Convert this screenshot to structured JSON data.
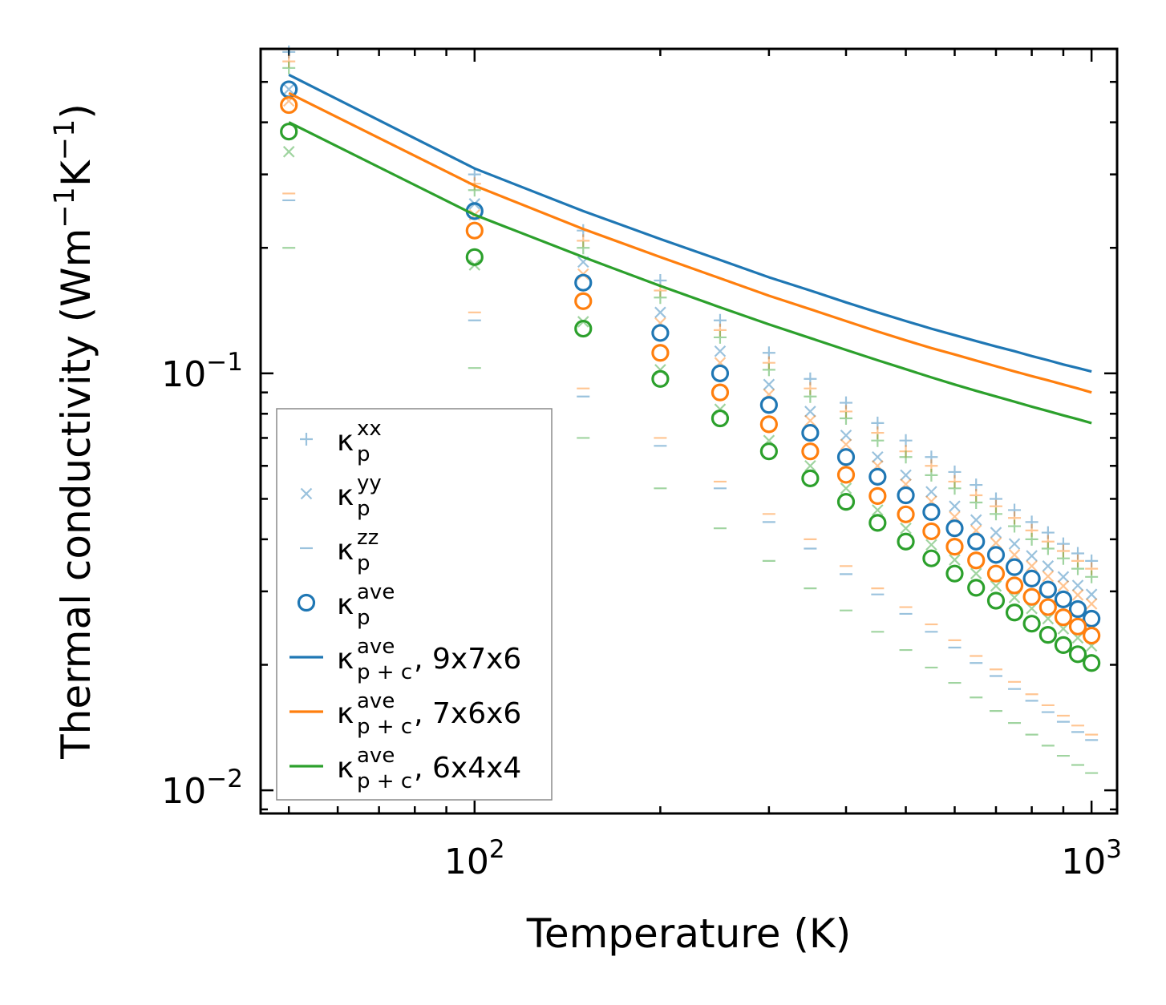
{
  "chart_data": {
    "type": "scatter",
    "x_scale": "log",
    "y_scale": "log",
    "xlim": [
      45,
      1100
    ],
    "ylim": [
      0.0088,
      0.6
    ],
    "xlabel": "Temperature (K)",
    "ylabel": {
      "text": "Thermal conductivity (Wm",
      "sup1": "−1",
      "mid": "K",
      "sup2": "−1",
      "end": ")"
    },
    "x_major_ticks": [
      {
        "value": 100,
        "base": "10",
        "exp": "2"
      },
      {
        "value": 1000,
        "base": "10",
        "exp": "3"
      }
    ],
    "y_major_ticks": [
      {
        "value": 0.01,
        "base": "10",
        "exp": "−2"
      },
      {
        "value": 0.1,
        "base": "10",
        "exp": "−1"
      }
    ],
    "x": [
      50,
      100,
      150,
      200,
      250,
      300,
      350,
      400,
      450,
      500,
      550,
      600,
      650,
      700,
      750,
      800,
      850,
      900,
      950,
      1000
    ],
    "colors": {
      "c1": "#1f77b4",
      "c2": "#ff7f0e",
      "c3": "#2ca02c"
    },
    "series": [
      {
        "name": "kp_xx_9x7x6",
        "marker": "plus",
        "color": "#1f77b4",
        "alpha": 0.45,
        "values": [
          0.59,
          0.3,
          0.22,
          0.167,
          0.134,
          0.112,
          0.097,
          0.085,
          0.076,
          0.069,
          0.063,
          0.058,
          0.054,
          0.05,
          0.047,
          0.044,
          0.0415,
          0.039,
          0.037,
          0.0355
        ]
      },
      {
        "name": "kp_xx_7x6x6",
        "marker": "plus",
        "color": "#ff7f0e",
        "alpha": 0.45,
        "values": [
          0.56,
          0.285,
          0.208,
          0.158,
          0.127,
          0.106,
          0.092,
          0.081,
          0.072,
          0.065,
          0.06,
          0.055,
          0.051,
          0.048,
          0.045,
          0.042,
          0.0395,
          0.0375,
          0.0355,
          0.034
        ]
      },
      {
        "name": "kp_xx_6x4x4",
        "marker": "plus",
        "color": "#2ca02c",
        "alpha": 0.45,
        "values": [
          0.54,
          0.275,
          0.2,
          0.152,
          0.122,
          0.102,
          0.088,
          0.078,
          0.069,
          0.063,
          0.057,
          0.053,
          0.049,
          0.046,
          0.043,
          0.04,
          0.038,
          0.036,
          0.034,
          0.0325
        ]
      },
      {
        "name": "kp_yy_9x7x6",
        "marker": "x",
        "color": "#1f77b4",
        "alpha": 0.45,
        "values": [
          0.48,
          0.255,
          0.185,
          0.14,
          0.113,
          0.094,
          0.081,
          0.071,
          0.063,
          0.057,
          0.052,
          0.048,
          0.0445,
          0.0415,
          0.039,
          0.0365,
          0.0345,
          0.0325,
          0.031,
          0.0295
        ]
      },
      {
        "name": "kp_yy_7x6x6",
        "marker": "x",
        "color": "#ff7f0e",
        "alpha": 0.45,
        "values": [
          0.45,
          0.24,
          0.173,
          0.132,
          0.106,
          0.089,
          0.077,
          0.0675,
          0.06,
          0.0542,
          0.0493,
          0.0453,
          0.042,
          0.0392,
          0.0367,
          0.0345,
          0.0326,
          0.0309,
          0.0294,
          0.028
        ]
      },
      {
        "name": "kp_yy_6x4x4",
        "marker": "x",
        "color": "#2ca02c",
        "alpha": 0.45,
        "values": [
          0.34,
          0.182,
          0.133,
          0.102,
          0.082,
          0.069,
          0.06,
          0.053,
          0.047,
          0.0425,
          0.0388,
          0.0357,
          0.0331,
          0.0309,
          0.029,
          0.0273,
          0.0258,
          0.0244,
          0.0232,
          0.0222
        ]
      },
      {
        "name": "kp_zz_9x7x6",
        "marker": "dash",
        "color": "#1f77b4",
        "alpha": 0.45,
        "values": [
          0.26,
          0.134,
          0.088,
          0.067,
          0.053,
          0.044,
          0.038,
          0.033,
          0.0295,
          0.0265,
          0.024,
          0.022,
          0.0202,
          0.0188,
          0.0175,
          0.0164,
          0.0154,
          0.0146,
          0.0138,
          0.0132
        ]
      },
      {
        "name": "kp_zz_7x6x6",
        "marker": "dash",
        "color": "#ff7f0e",
        "alpha": 0.45,
        "values": [
          0.27,
          0.14,
          0.092,
          0.07,
          0.055,
          0.046,
          0.04,
          0.0345,
          0.0305,
          0.0275,
          0.025,
          0.0229,
          0.021,
          0.0195,
          0.0182,
          0.017,
          0.016,
          0.0151,
          0.0143,
          0.0136
        ]
      },
      {
        "name": "kp_zz_6x4x4",
        "marker": "dash",
        "color": "#2ca02c",
        "alpha": 0.45,
        "values": [
          0.2,
          0.103,
          0.07,
          0.053,
          0.0425,
          0.0355,
          0.0305,
          0.027,
          0.024,
          0.0217,
          0.0197,
          0.0181,
          0.0167,
          0.0155,
          0.0145,
          0.0136,
          0.0128,
          0.0121,
          0.0115,
          0.011
        ]
      },
      {
        "name": "kp_ave_9x7x6",
        "marker": "circle",
        "color": "#1f77b4",
        "alpha": 1,
        "values": [
          0.48,
          0.245,
          0.165,
          0.125,
          0.1,
          0.084,
          0.072,
          0.063,
          0.0565,
          0.051,
          0.0465,
          0.0425,
          0.0395,
          0.0367,
          0.0343,
          0.0322,
          0.0303,
          0.0287,
          0.0272,
          0.0258
        ]
      },
      {
        "name": "kp_ave_7x6x6",
        "marker": "circle",
        "color": "#ff7f0e",
        "alpha": 1,
        "values": [
          0.44,
          0.22,
          0.149,
          0.112,
          0.09,
          0.0755,
          0.065,
          0.0571,
          0.0508,
          0.0459,
          0.0418,
          0.0384,
          0.0356,
          0.0331,
          0.031,
          0.0291,
          0.0275,
          0.026,
          0.0247,
          0.0235
        ]
      },
      {
        "name": "kp_ave_6x4x4",
        "marker": "circle",
        "color": "#2ca02c",
        "alpha": 1,
        "values": [
          0.38,
          0.19,
          0.128,
          0.097,
          0.078,
          0.065,
          0.056,
          0.0492,
          0.0438,
          0.0395,
          0.036,
          0.0331,
          0.0306,
          0.0285,
          0.0267,
          0.0251,
          0.0236,
          0.0223,
          0.0212,
          0.0202
        ]
      },
      {
        "name": "kpc_ave_9x7x6",
        "marker": "line",
        "color": "#1f77b4",
        "alpha": 1,
        "values": [
          0.52,
          0.31,
          0.245,
          0.21,
          0.187,
          0.17,
          0.158,
          0.148,
          0.14,
          0.1335,
          0.128,
          0.1235,
          0.1195,
          0.116,
          0.113,
          0.11,
          0.1075,
          0.105,
          0.103,
          0.101
        ]
      },
      {
        "name": "kpc_ave_7x6x6",
        "marker": "line",
        "color": "#ff7f0e",
        "alpha": 1,
        "values": [
          0.47,
          0.282,
          0.222,
          0.19,
          0.169,
          0.1535,
          0.1425,
          0.1335,
          0.126,
          0.12,
          0.115,
          0.111,
          0.1073,
          0.104,
          0.1011,
          0.0985,
          0.0962,
          0.094,
          0.092,
          0.09
        ]
      },
      {
        "name": "kpc_ave_6x4x4",
        "marker": "line",
        "color": "#2ca02c",
        "alpha": 1,
        "values": [
          0.4,
          0.24,
          0.19,
          0.162,
          0.144,
          0.131,
          0.1215,
          0.1138,
          0.1075,
          0.1023,
          0.0978,
          0.094,
          0.0908,
          0.088,
          0.0855,
          0.0832,
          0.0812,
          0.0793,
          0.0776,
          0.076
        ]
      }
    ],
    "legend": {
      "position": "lower-left",
      "entries": [
        {
          "marker": "plus",
          "color": "#1f77b4",
          "alpha": 0.45,
          "symbol": "κ",
          "sub": "p",
          "sup": "xx",
          "suffix": ""
        },
        {
          "marker": "x",
          "color": "#1f77b4",
          "alpha": 0.45,
          "symbol": "κ",
          "sub": "p",
          "sup": "yy",
          "suffix": ""
        },
        {
          "marker": "dash",
          "color": "#1f77b4",
          "alpha": 0.45,
          "symbol": "κ",
          "sub": "p",
          "sup": "zz",
          "suffix": ""
        },
        {
          "marker": "circle",
          "color": "#1f77b4",
          "alpha": 1,
          "symbol": "κ",
          "sub": "p",
          "sup": "ave",
          "suffix": ""
        },
        {
          "marker": "line",
          "color": "#1f77b4",
          "alpha": 1,
          "symbol": "κ",
          "sub": "p + c",
          "sup": "ave",
          "suffix": ", 9x7x6"
        },
        {
          "marker": "line",
          "color": "#ff7f0e",
          "alpha": 1,
          "symbol": "κ",
          "sub": "p + c",
          "sup": "ave",
          "suffix": ", 7x6x6"
        },
        {
          "marker": "line",
          "color": "#2ca02c",
          "alpha": 1,
          "symbol": "κ",
          "sub": "p + c",
          "sup": "ave",
          "suffix": ", 6x4x4"
        }
      ]
    }
  }
}
